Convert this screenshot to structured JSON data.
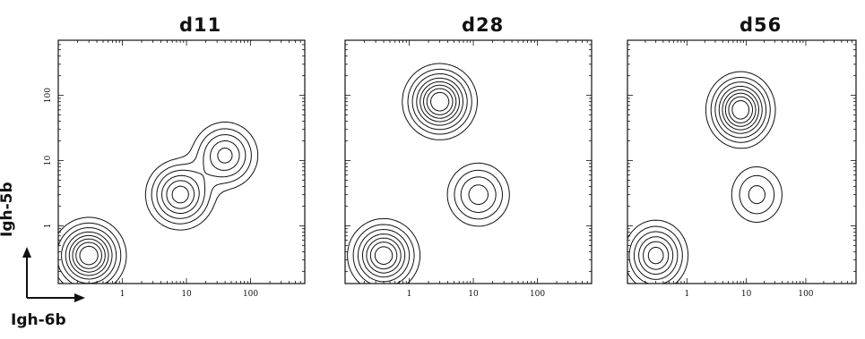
{
  "figure": {
    "ylabel": "Igh-5b",
    "xlabel": "Igh-6b"
  },
  "chart_data": [
    {
      "type": "contour",
      "title": "d11",
      "xlabel": "Igh-6b",
      "ylabel": "Igh-5b",
      "xscale": "log",
      "yscale": "log",
      "xlim": [
        0.1,
        700
      ],
      "ylim": [
        0.13,
        700
      ],
      "xticks": [
        1,
        10,
        100
      ],
      "yticks": [
        1,
        10,
        100
      ],
      "xtick_labels": [
        "1",
        "10",
        "100"
      ],
      "ytick_labels": [
        "1",
        "10",
        "100"
      ],
      "populations": [
        {
          "center": [
            0.3,
            0.35
          ],
          "weight": 1.0
        },
        {
          "center": [
            8,
            3
          ],
          "weight": 0.7
        },
        {
          "center": [
            40,
            12
          ],
          "weight": 0.55
        }
      ]
    },
    {
      "type": "contour",
      "title": "d28",
      "xlabel": "",
      "ylabel": "",
      "xscale": "log",
      "yscale": "log",
      "xlim": [
        0.1,
        700
      ],
      "ylim": [
        0.13,
        700
      ],
      "xticks": [
        1,
        10,
        100
      ],
      "yticks": [
        1,
        10,
        100
      ],
      "xtick_labels": [
        "1",
        "10",
        "100"
      ],
      "ytick_labels": [],
      "populations": [
        {
          "center": [
            0.4,
            0.35
          ],
          "weight": 0.85
        },
        {
          "center": [
            3,
            80
          ],
          "weight": 1.0
        },
        {
          "center": [
            12,
            3
          ],
          "weight": 0.45
        }
      ]
    },
    {
      "type": "contour",
      "title": "d56",
      "xlabel": "",
      "ylabel": "",
      "xscale": "log",
      "yscale": "log",
      "xlim": [
        0.1,
        700
      ],
      "ylim": [
        0.13,
        700
      ],
      "xticks": [
        1,
        10,
        100
      ],
      "yticks": [
        1,
        10,
        100
      ],
      "xtick_labels": [
        "1",
        "10",
        "100"
      ],
      "ytick_labels": [],
      "populations": [
        {
          "center": [
            0.3,
            0.35
          ],
          "weight": 0.7
        },
        {
          "center": [
            8,
            60
          ],
          "weight": 1.0
        },
        {
          "center": [
            15,
            3
          ],
          "weight": 0.3
        }
      ]
    }
  ]
}
